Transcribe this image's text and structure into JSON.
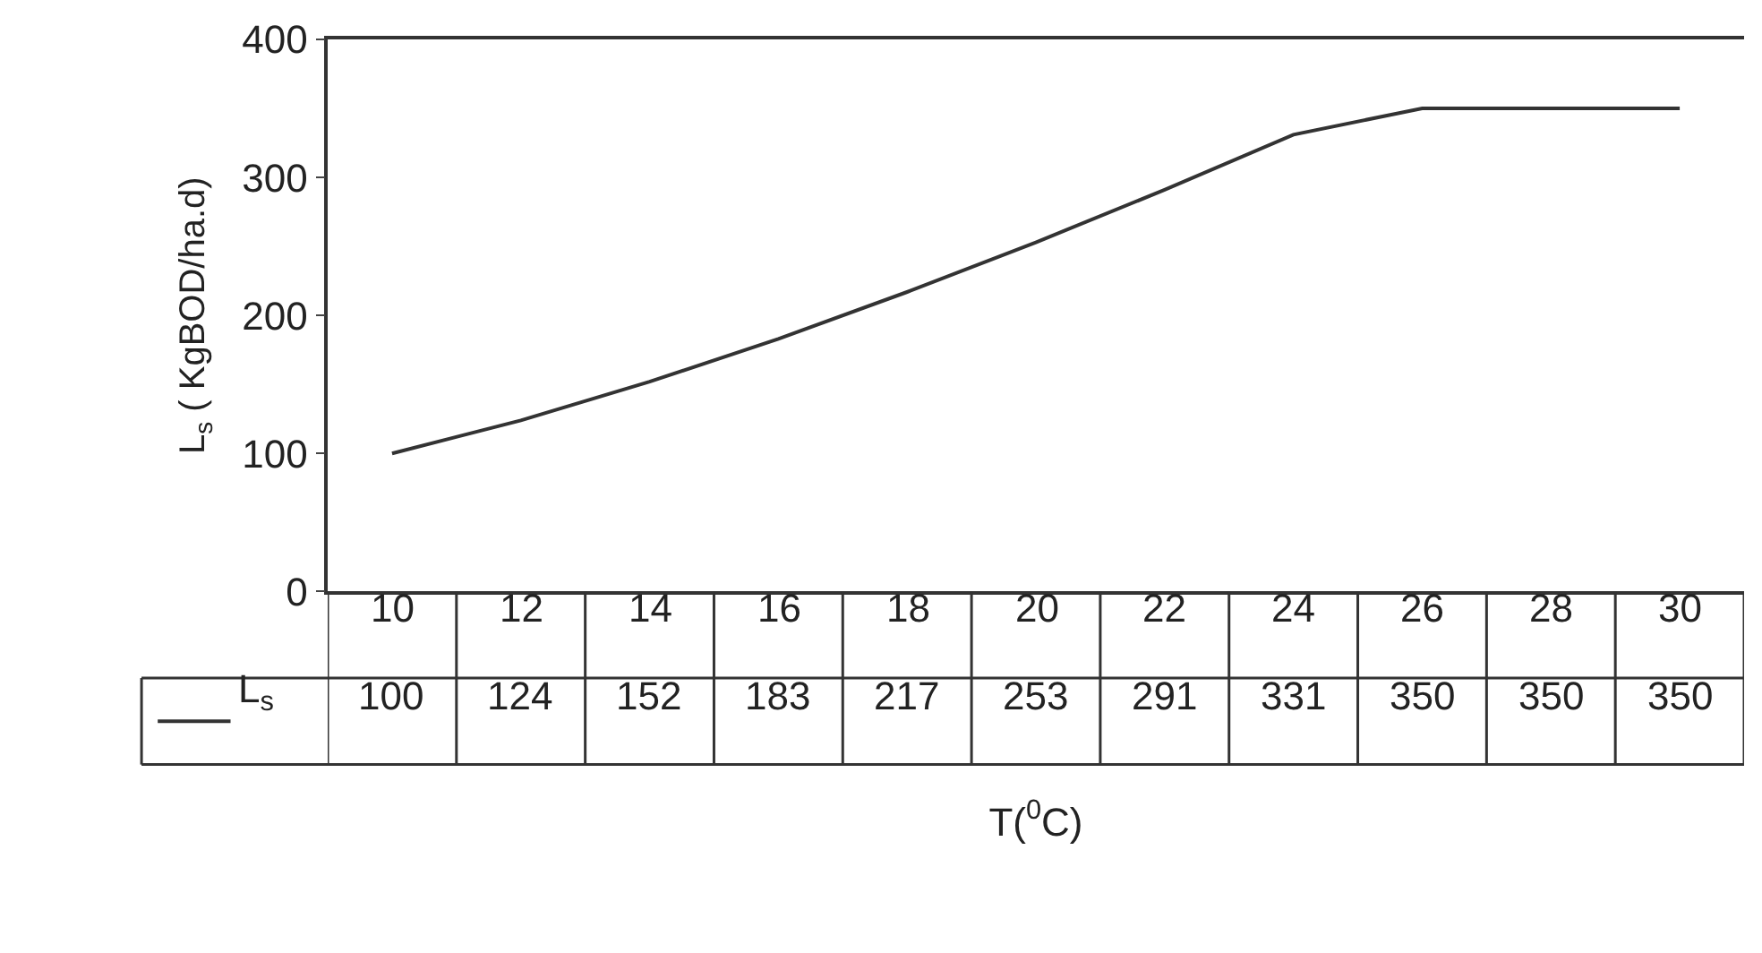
{
  "chart_data": {
    "type": "line",
    "xlabel": "T($^{0}$C)",
    "ylabel": "L$_{s}$ ( KgBOD/ha.d)",
    "categories": [
      "10",
      "12",
      "14",
      "16",
      "18",
      "20",
      "22",
      "24",
      "26",
      "28",
      "30"
    ],
    "series": [
      {
        "name": "L$_{s}$",
        "color": "#333333",
        "values": [
          100,
          124,
          152,
          183,
          217,
          253,
          291,
          331,
          350,
          350,
          350
        ]
      }
    ],
    "ylim": [
      0,
      400
    ],
    "yticks": [
      0,
      100,
      200,
      300,
      400
    ],
    "data_labels": true,
    "marker": "none",
    "line_style": "solid"
  }
}
